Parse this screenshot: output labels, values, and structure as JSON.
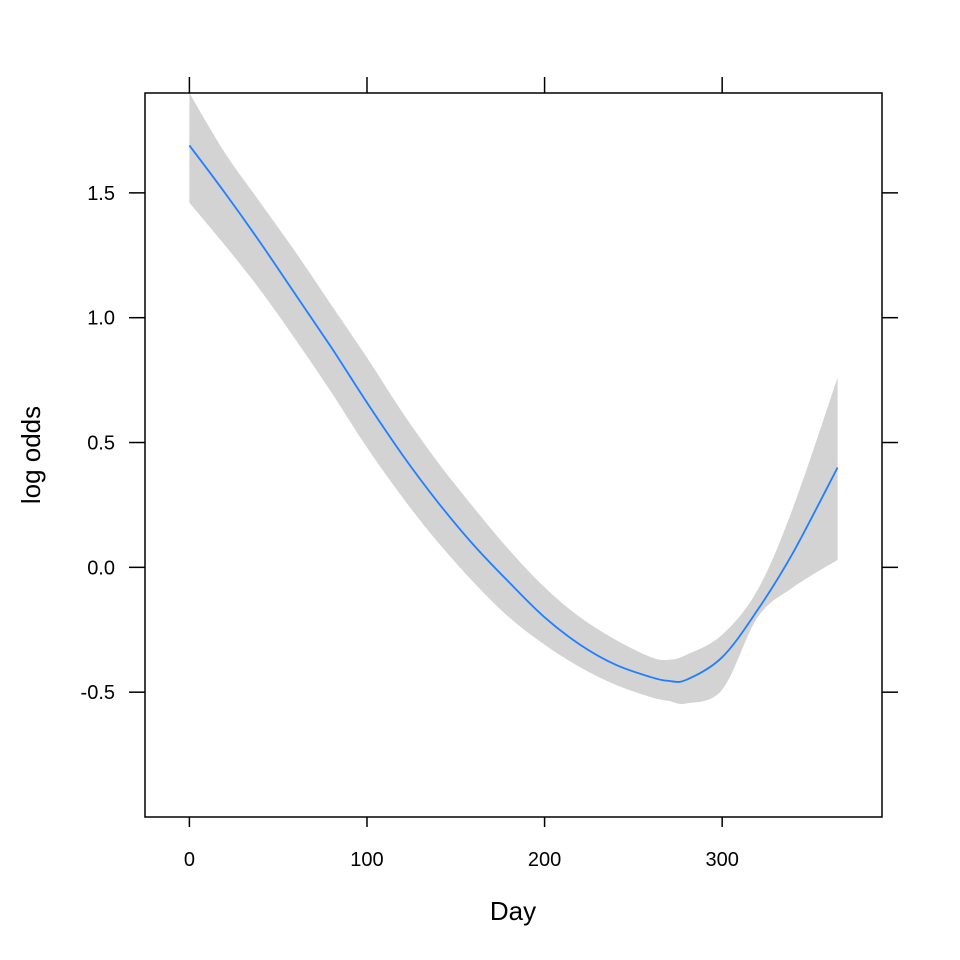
{
  "chart_data": {
    "type": "line",
    "title": "",
    "xlabel": "Day",
    "ylabel": "log odds",
    "xlim": [
      -25,
      390
    ],
    "ylim": [
      -1.0,
      1.9
    ],
    "x_ticks": [
      0,
      100,
      200,
      300
    ],
    "x_tick_labels": [
      "0",
      "100",
      "200",
      "300"
    ],
    "y_ticks": [
      -0.5,
      0.0,
      0.5,
      1.0,
      1.5
    ],
    "y_tick_labels": [
      "-0.5",
      "0.0",
      "0.5",
      "1.0",
      "1.5"
    ],
    "grid": false,
    "colors": {
      "line": "#1f7fff",
      "band": "#d3d3d3",
      "frame": "#000000"
    },
    "series": [
      {
        "x": [
          0,
          20,
          40,
          60,
          80,
          100,
          120,
          140,
          160,
          180,
          200,
          220,
          240,
          260,
          270,
          280,
          300,
          320,
          340,
          365
        ],
        "y": [
          1.69,
          1.5,
          1.3,
          1.09,
          0.88,
          0.66,
          0.45,
          0.26,
          0.09,
          -0.06,
          -0.2,
          -0.31,
          -0.39,
          -0.44,
          -0.455,
          -0.45,
          -0.36,
          -0.17,
          0.06,
          0.4
        ],
        "upper": [
          1.9,
          1.66,
          1.46,
          1.26,
          1.05,
          0.84,
          0.62,
          0.42,
          0.24,
          0.07,
          -0.08,
          -0.2,
          -0.29,
          -0.36,
          -0.37,
          -0.35,
          -0.27,
          -0.09,
          0.24,
          0.76
        ],
        "lower": [
          1.46,
          1.29,
          1.11,
          0.91,
          0.7,
          0.48,
          0.28,
          0.1,
          -0.06,
          -0.2,
          -0.31,
          -0.4,
          -0.47,
          -0.52,
          -0.535,
          -0.545,
          -0.49,
          -0.2,
          -0.08,
          0.03
        ]
      }
    ]
  }
}
